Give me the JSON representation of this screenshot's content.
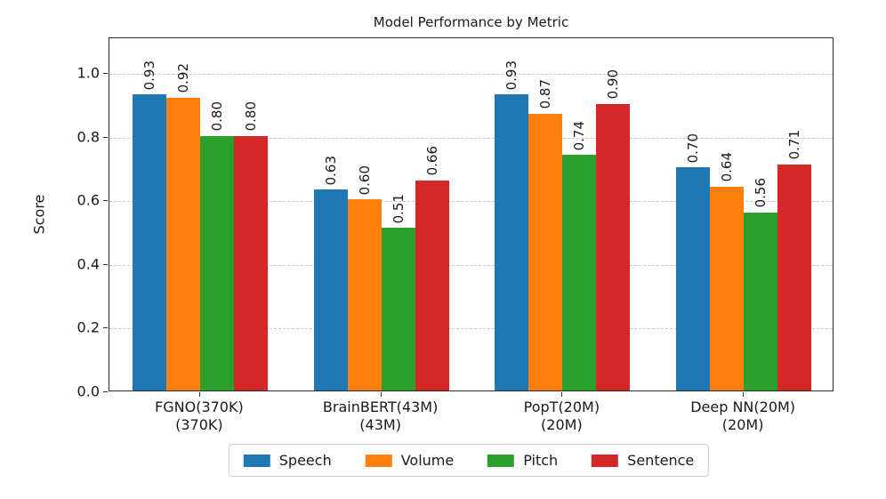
{
  "chart_data": {
    "type": "bar",
    "title": "Model Performance by Metric",
    "xlabel": "",
    "ylabel": "Score",
    "categories": [
      {
        "line1": "FGNO(370K)",
        "line2": "(370K)"
      },
      {
        "line1": "BrainBERT(43M)",
        "line2": "(43M)"
      },
      {
        "line1": "PopT(20M)",
        "line2": "(20M)"
      },
      {
        "line1": "Deep NN(20M)",
        "line2": "(20M)"
      }
    ],
    "series": [
      {
        "name": "Speech",
        "color": "#1f77b4",
        "values": [
          0.93,
          0.63,
          0.93,
          0.7
        ]
      },
      {
        "name": "Volume",
        "color": "#ff7f0e",
        "values": [
          0.92,
          0.6,
          0.87,
          0.64
        ]
      },
      {
        "name": "Pitch",
        "color": "#2ca02c",
        "values": [
          0.8,
          0.51,
          0.74,
          0.56
        ]
      },
      {
        "name": "Sentence",
        "color": "#d62728",
        "values": [
          0.8,
          0.66,
          0.9,
          0.71
        ]
      }
    ],
    "bar_labels_decimals": 2,
    "bar_label_rotation_deg": 90,
    "yticks": [
      "0.0",
      "0.2",
      "0.4",
      "0.6",
      "0.8",
      "1.0"
    ],
    "ylim": [
      0,
      1.11
    ],
    "grid": {
      "horizontal": true,
      "style": "dashed",
      "color": "#c9c9c9"
    },
    "legend_position": "bottom-center",
    "text_color": "#1a1a1a"
  }
}
